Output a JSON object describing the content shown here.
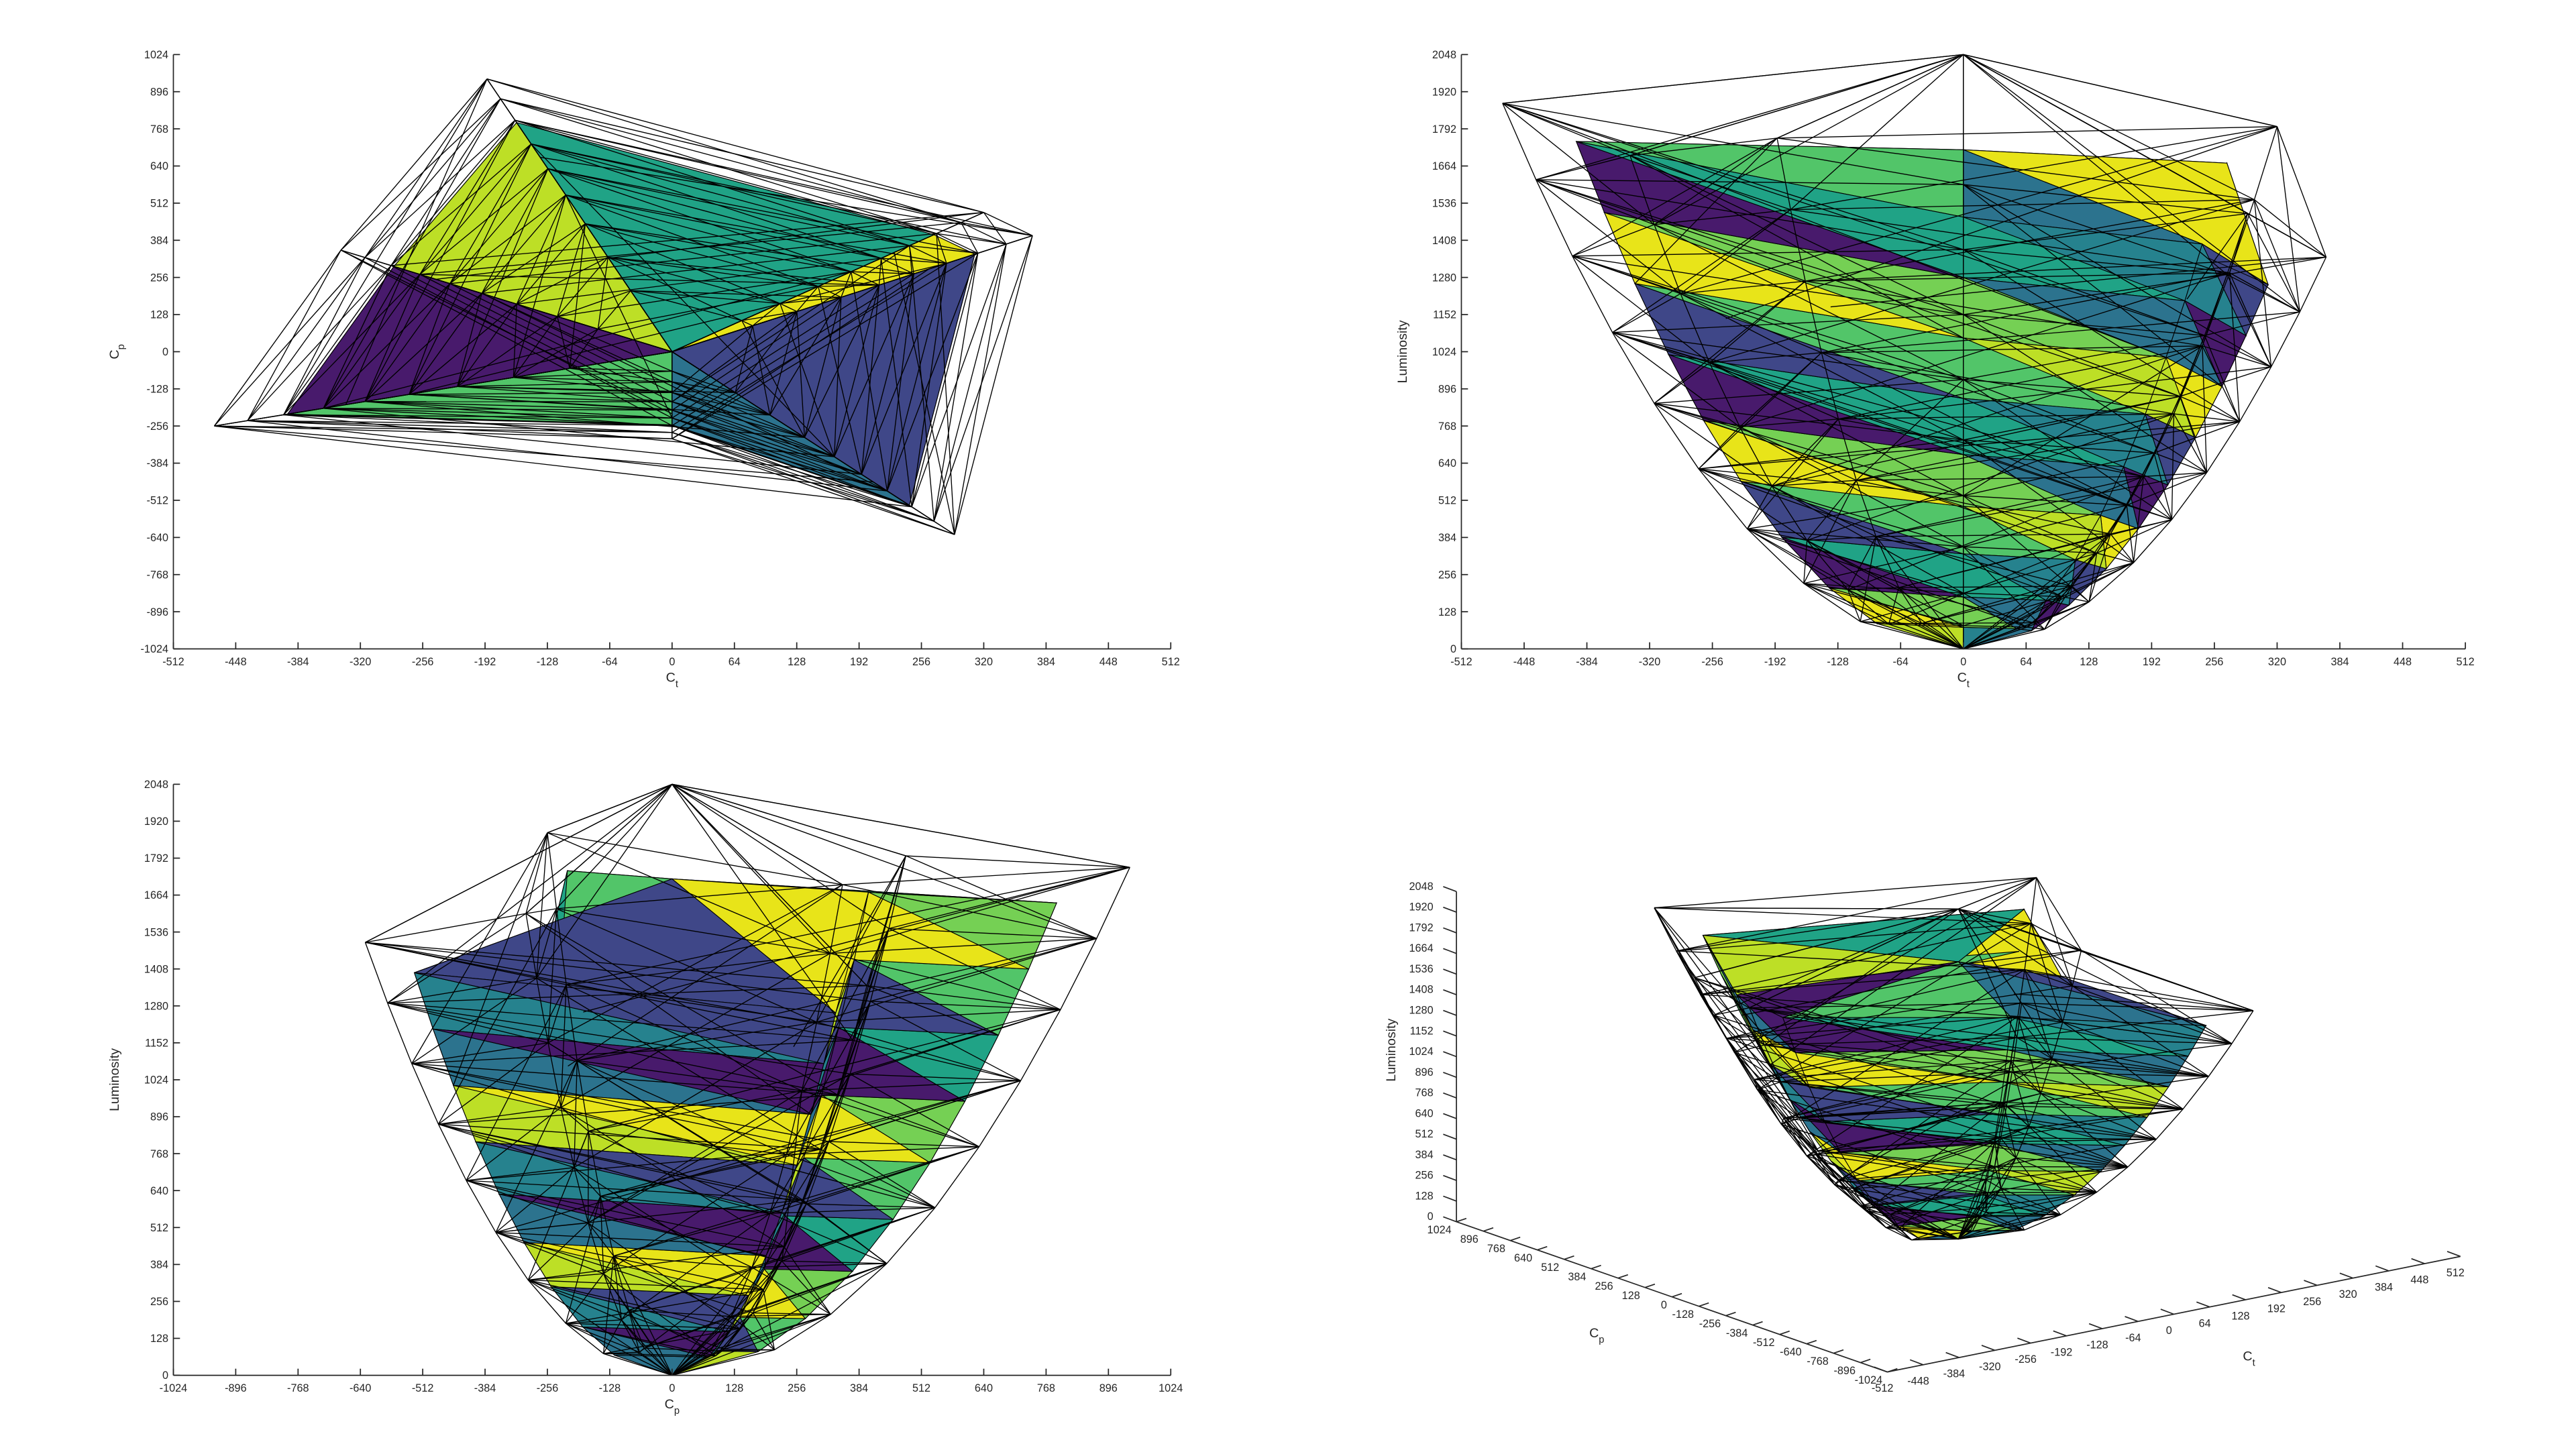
{
  "chart_data": [
    {
      "type": "mesh3d",
      "view": "top",
      "xlabel": {
        "base": "C",
        "sub": "t"
      },
      "ylabel": {
        "base": "C",
        "sub": "p"
      },
      "xlim": [
        -512,
        512
      ],
      "ylim": [
        -1024,
        1024
      ],
      "xticks": [
        -512,
        -448,
        -384,
        -320,
        -256,
        -192,
        -128,
        -64,
        0,
        64,
        128,
        192,
        256,
        320,
        384,
        448,
        512
      ],
      "yticks": [
        -1024,
        -896,
        -768,
        -640,
        -512,
        -384,
        -256,
        -128,
        0,
        128,
        256,
        384,
        512,
        640,
        768,
        896,
        1024
      ],
      "grid": false
    },
    {
      "type": "mesh3d",
      "view": "front",
      "xlabel": {
        "base": "C",
        "sub": "t"
      },
      "ylabel": "Luminosity",
      "xlim": [
        -512,
        512
      ],
      "ylim": [
        0,
        2048
      ],
      "xticks": [
        -512,
        -448,
        -384,
        -320,
        -256,
        -192,
        -128,
        -64,
        0,
        64,
        128,
        192,
        256,
        320,
        384,
        448,
        512
      ],
      "yticks": [
        0,
        128,
        256,
        384,
        512,
        640,
        768,
        896,
        1024,
        1152,
        1280,
        1408,
        1536,
        1664,
        1792,
        1920,
        2048
      ],
      "grid": false
    },
    {
      "type": "mesh3d",
      "view": "side",
      "xlabel": {
        "base": "C",
        "sub": "p"
      },
      "ylabel": "Luminosity",
      "xlim": [
        -1024,
        1024
      ],
      "ylim": [
        0,
        2048
      ],
      "xticks": [
        -1024,
        -896,
        -768,
        -640,
        -512,
        -384,
        -256,
        -128,
        0,
        128,
        256,
        384,
        512,
        640,
        768,
        896,
        1024
      ],
      "yticks": [
        0,
        128,
        256,
        384,
        512,
        640,
        768,
        896,
        1024,
        1152,
        1280,
        1408,
        1536,
        1664,
        1792,
        1920,
        2048
      ],
      "grid": false
    },
    {
      "type": "mesh3d",
      "view": "3d",
      "xlabel": {
        "base": "C",
        "sub": "t"
      },
      "ylabel": {
        "base": "C",
        "sub": "p"
      },
      "zlabel": "Luminosity",
      "xlim": [
        -512,
        512
      ],
      "ylim": [
        -1024,
        1024
      ],
      "zlim": [
        0,
        2048
      ],
      "xticks": [
        -512,
        -448,
        -384,
        -320,
        -256,
        -192,
        -128,
        -64,
        0,
        64,
        128,
        192,
        256,
        320,
        384,
        448,
        512
      ],
      "yticks": [
        1024,
        896,
        768,
        640,
        512,
        384,
        256,
        128,
        0,
        -128,
        -256,
        -384,
        -512,
        -640,
        -768,
        -896,
        -1024
      ],
      "zticks": [
        0,
        128,
        256,
        384,
        512,
        640,
        768,
        896,
        1024,
        1152,
        1280,
        1408,
        1536,
        1664,
        1792,
        1920,
        2048
      ],
      "grid": false
    }
  ],
  "mesh": {
    "apex_top": [
      0,
      0,
      2048
    ],
    "apex_bottom": [
      0,
      0,
      0
    ],
    "ring": [
      [
        370,
        400,
        1350
      ],
      [
        320,
        480,
        1800
      ],
      [
        -190,
        940,
        1760
      ],
      [
        -340,
        350,
        1700
      ],
      [
        -470,
        -256,
        1880
      ],
      [
        0,
        -300,
        1600
      ],
      [
        290,
        -630,
        1500
      ]
    ],
    "face_colors": [
      "#e8e419",
      "#2c738e",
      "#20a386",
      "#3f4788",
      "#bddf26",
      "#75d054",
      "#481a6c",
      "#26828e",
      "#52c569"
    ],
    "edge_color": "#000000"
  }
}
